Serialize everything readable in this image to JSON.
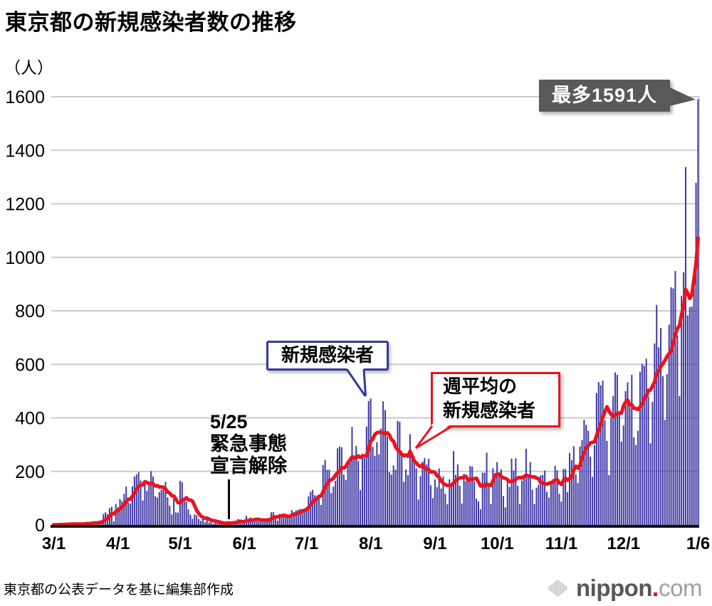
{
  "title": "東京都の新規感染者数の推移",
  "y_unit": "（人）",
  "source_note": "東京都の公表データを基に編集部作成",
  "logo": {
    "name": "nippon",
    "dot": ".",
    "tld": "com"
  },
  "annotations": {
    "max_label": "最多1591人",
    "daily_label": "新規感染者",
    "weekly_label_line1": "週平均の",
    "weekly_label_line2": "新規感染者",
    "emergency_date": "5/25",
    "emergency_line1": "緊急事態",
    "emergency_line2": "宣言解除"
  },
  "chart_data": {
    "type": "bar",
    "title": "東京都の新規感染者数の推移",
    "ylabel": "（人）",
    "ylim": [
      0,
      1600
    ],
    "y_ticks": [
      0,
      200,
      400,
      600,
      800,
      1000,
      1200,
      1400,
      1600
    ],
    "x_tick_labels": [
      "3/1",
      "4/1",
      "5/1",
      "6/1",
      "7/1",
      "8/1",
      "9/1",
      "10/1",
      "11/1",
      "12/1",
      "1/6"
    ],
    "x_tick_day_index": [
      0,
      31,
      61,
      92,
      122,
      153,
      184,
      214,
      245,
      275,
      311
    ],
    "start_date": "3/1",
    "end_date": "1/6",
    "grid": true,
    "bar_series_name": "新規感染者",
    "line_series_name": "週平均の新規感染者",
    "line_rule": "trailing-7-day-average",
    "bar_color": "#413CA6",
    "line_color": "#E8141E",
    "max_value": 1591,
    "max_value_date": "1/6",
    "daily_values": [
      1,
      0,
      1,
      3,
      2,
      3,
      4,
      6,
      1,
      3,
      6,
      2,
      2,
      5,
      4,
      2,
      12,
      9,
      7,
      11,
      7,
      2,
      16,
      17,
      41,
      47,
      40,
      63,
      68,
      13,
      78,
      66,
      97,
      89,
      116,
      143,
      83,
      80,
      144,
      181,
      189,
      197,
      166,
      91,
      161,
      127,
      149,
      201,
      181,
      107,
      102,
      123,
      132,
      134,
      161,
      103,
      72,
      39,
      112,
      47,
      46,
      165,
      160,
      93,
      87,
      58,
      38,
      23,
      39,
      36,
      22,
      15,
      28,
      10,
      30,
      9,
      14,
      5,
      10,
      5,
      5,
      11,
      3,
      2,
      14,
      8,
      10,
      11,
      15,
      22,
      14,
      5,
      13,
      34,
      12,
      28,
      20,
      26,
      14,
      13,
      12,
      18,
      22,
      25,
      24,
      47,
      48,
      27,
      16,
      41,
      35,
      39,
      35,
      29,
      31,
      55,
      48,
      54,
      57,
      60,
      58,
      54,
      67,
      107,
      124,
      131,
      111,
      102,
      106,
      75,
      224,
      243,
      206,
      206,
      119,
      143,
      165,
      286,
      293,
      290,
      188,
      168,
      237,
      238,
      366,
      260,
      295,
      239,
      131,
      266,
      250,
      367,
      463,
      472,
      292,
      258,
      309,
      263,
      360,
      462,
      429,
      331,
      197,
      188,
      222,
      206,
      389,
      385,
      260,
      161,
      207,
      186,
      339,
      258,
      256,
      212,
      95,
      182,
      236,
      250,
      226,
      247,
      148,
      100,
      170,
      141,
      211,
      136,
      181,
      116,
      77,
      170,
      149,
      276,
      187,
      226,
      146,
      80,
      191,
      163,
      171,
      220,
      218,
      162,
      98,
      88,
      59,
      195,
      195,
      270,
      144,
      78,
      212,
      194,
      235,
      196,
      207,
      108,
      66,
      177,
      142,
      248,
      203,
      249,
      146,
      78,
      166,
      177,
      284,
      184,
      235,
      132,
      78,
      139,
      150,
      185,
      186,
      203,
      124,
      102,
      158,
      171,
      221,
      204,
      116,
      87,
      209,
      209,
      122,
      269,
      242,
      294,
      189,
      157,
      293,
      317,
      393,
      374,
      352,
      255,
      180,
      298,
      493,
      534,
      522,
      539,
      391,
      314,
      186,
      401,
      481,
      570,
      561,
      418,
      311,
      372,
      500,
      533,
      449,
      561,
      327,
      299,
      352,
      572,
      602,
      595,
      621,
      480,
      305,
      460,
      678,
      822,
      664,
      736,
      556,
      392,
      563,
      748,
      888,
      884,
      949,
      708,
      481,
      856,
      944,
      1337,
      783,
      814,
      816,
      884,
      1278,
      1591
    ]
  },
  "colors": {
    "grid": "#CBCBCB",
    "axis": "#111111",
    "max_box_bg": "#58595B",
    "daily_box_border": "#3538A0",
    "weekly_box_border": "#E8141E",
    "logo_gray": "#BDBDBD"
  }
}
